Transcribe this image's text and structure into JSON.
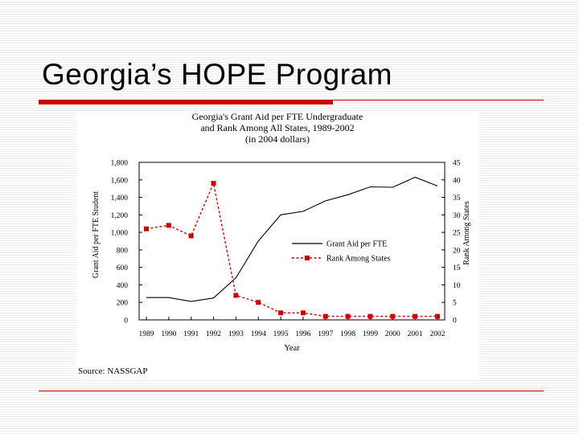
{
  "slide": {
    "title": "Georgia’s HOPE Program"
  },
  "colors": {
    "accent": "#cc0000",
    "rank_series": "#cc0000",
    "grant_series": "#000000"
  },
  "figure": {
    "source": "Source: NASSGAP"
  },
  "chart_data": {
    "type": "line",
    "title_lines": [
      "Georgia's Grant Aid per FTE Undergraduate",
      "and Rank Among All States, 1989-2002",
      "(in 2004 dollars)"
    ],
    "xlabel": "Year",
    "ylabel": "Grant Aid per FTE Student",
    "y2label": "Rank Among States",
    "categories": [
      "1989",
      "1990",
      "1991",
      "1992",
      "1993",
      "1994",
      "1995",
      "1996",
      "1997",
      "1998",
      "1999",
      "2000",
      "2001",
      "2002"
    ],
    "ylim": [
      0,
      1800
    ],
    "y2lim": [
      0,
      45
    ],
    "yticks": [
      "0",
      "200",
      "400",
      "600",
      "800",
      "1,000",
      "1,200",
      "1,400",
      "1,600",
      "1,800"
    ],
    "y2ticks": [
      "0",
      "5",
      "10",
      "15",
      "20",
      "25",
      "30",
      "35",
      "40",
      "45"
    ],
    "legend_position": "center-right",
    "series": [
      {
        "name": "Grant Aid per FTE",
        "axis": "left",
        "style": "solid",
        "values": [
          255,
          255,
          210,
          250,
          480,
          900,
          1200,
          1240,
          1360,
          1430,
          1520,
          1515,
          1630,
          1530
        ]
      },
      {
        "name": "Rank Among States",
        "axis": "right",
        "style": "dashed-square",
        "values": [
          26,
          27,
          24,
          39,
          7,
          5,
          2,
          2,
          1,
          1,
          1,
          1,
          1,
          1
        ]
      }
    ]
  }
}
